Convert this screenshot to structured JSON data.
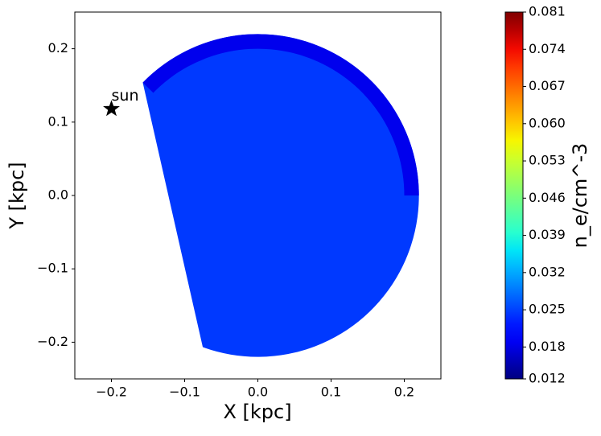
{
  "chart_data": {
    "type": "region-map",
    "xlabel": "X [kpc]",
    "ylabel": "Y [kpc]",
    "xlim": [
      -0.25,
      0.25
    ],
    "ylim": [
      -0.25,
      0.25
    ],
    "xticks": [
      {
        "value": -0.2,
        "label": "−0.2"
      },
      {
        "value": -0.1,
        "label": "−0.1"
      },
      {
        "value": 0,
        "label": "0.0"
      },
      0.1,
      0.2
    ],
    "yticks": [
      {
        "value": -0.2,
        "label": "−0.2"
      },
      {
        "value": -0.1,
        "label": "−0.1"
      },
      {
        "value": 0,
        "label": "0.0"
      },
      0.1,
      0.2
    ],
    "cmap": "jet",
    "regions": [
      {
        "r": [
          0,
          0.22
        ],
        "theta": [
          -110,
          135.6
        ],
        "value": 0.0245
      },
      {
        "r": [
          0.2,
          0.22
        ],
        "theta": [
          0,
          135.6
        ],
        "value": 0.0185
      }
    ],
    "marker": {
      "label": "sun",
      "x": -0.2,
      "y": 0.118
    },
    "colorbar": {
      "label": "n_e/cm^-3",
      "lim": [
        0.012,
        0.081
      ],
      "ticks": [
        0.012,
        0.018,
        0.025,
        0.032,
        0.039,
        0.046,
        0.053,
        {
          "value": 0.06,
          "label": "0.060"
        },
        0.067,
        0.074,
        0.081
      ]
    }
  }
}
